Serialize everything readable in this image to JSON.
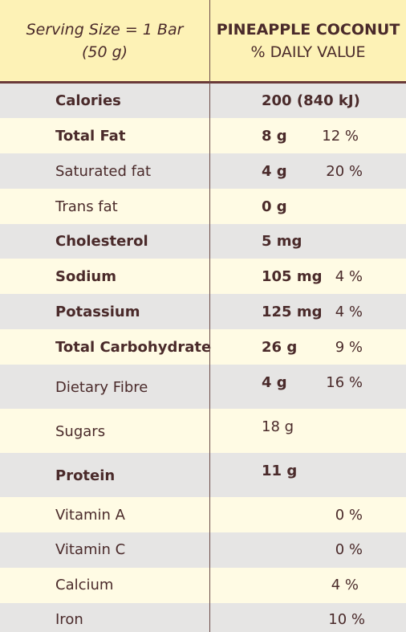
{
  "header": {
    "serving_line1": "Serving Size = 1 Bar",
    "serving_line2": "(50 g)",
    "product": "PINEAPPLE COCONUT",
    "daily_value": "% DAILY VALUE"
  },
  "rows": [
    {
      "name": "Calories",
      "amount": "200 (840 kJ)",
      "pct": ""
    },
    {
      "name": "Total Fat",
      "amount": "8 g",
      "pct": "12 %"
    },
    {
      "name": "Saturated fat",
      "amount": "4 g",
      "pct": "20 %"
    },
    {
      "name": "Trans fat",
      "amount": "0 g",
      "pct": ""
    },
    {
      "name": "Cholesterol",
      "amount": "5 mg",
      "pct": ""
    },
    {
      "name": "Sodium",
      "amount": "105 mg",
      "pct": "4 %"
    },
    {
      "name": "Potassium",
      "amount": "125 mg",
      "pct": "4 %"
    },
    {
      "name": "Total Carbohydrate",
      "amount": "26 g",
      "pct": "9 %"
    },
    {
      "name": "Dietary Fibre",
      "amount": "4 g",
      "pct": "16 %"
    },
    {
      "name": "Sugars",
      "amount": "18 g",
      "pct": ""
    },
    {
      "name": "Protein",
      "amount": "11 g",
      "pct": ""
    },
    {
      "name": "Vitamin A",
      "amount": "",
      "pct": "0 %"
    },
    {
      "name": "Vitamin C",
      "amount": "",
      "pct": "0 %"
    },
    {
      "name": "Calcium",
      "amount": "",
      "pct": "4 %"
    },
    {
      "name": "Iron",
      "amount": "",
      "pct": "10 %"
    }
  ]
}
